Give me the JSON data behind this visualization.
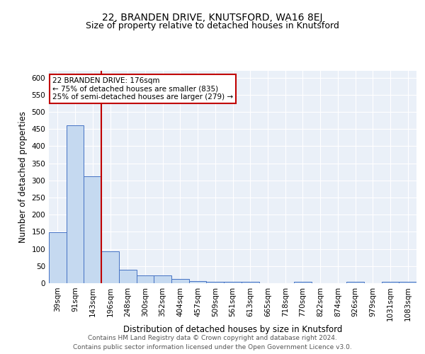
{
  "title": "22, BRANDEN DRIVE, KNUTSFORD, WA16 8EJ",
  "subtitle": "Size of property relative to detached houses in Knutsford",
  "xlabel": "Distribution of detached houses by size in Knutsford",
  "ylabel": "Number of detached properties",
  "categories": [
    "39sqm",
    "91sqm",
    "143sqm",
    "196sqm",
    "248sqm",
    "300sqm",
    "352sqm",
    "404sqm",
    "457sqm",
    "509sqm",
    "561sqm",
    "613sqm",
    "665sqm",
    "718sqm",
    "770sqm",
    "822sqm",
    "874sqm",
    "926sqm",
    "979sqm",
    "1031sqm",
    "1083sqm"
  ],
  "values": [
    148,
    460,
    312,
    93,
    39,
    22,
    22,
    13,
    7,
    5,
    5,
    4,
    0,
    0,
    5,
    0,
    0,
    5,
    0,
    5,
    5
  ],
  "bar_color": "#c5d9f0",
  "bar_edge_color": "#4472c4",
  "vline_color": "#c00000",
  "vline_x": 2.5,
  "annotation_text": "22 BRANDEN DRIVE: 176sqm\n← 75% of detached houses are smaller (835)\n25% of semi-detached houses are larger (279) →",
  "annotation_box_color": "white",
  "annotation_box_edge_color": "#c00000",
  "ylim": [
    0,
    620
  ],
  "yticks": [
    0,
    50,
    100,
    150,
    200,
    250,
    300,
    350,
    400,
    450,
    500,
    550,
    600
  ],
  "footer_line1": "Contains HM Land Registry data © Crown copyright and database right 2024.",
  "footer_line2": "Contains public sector information licensed under the Open Government Licence v3.0.",
  "background_color": "#eaf0f8",
  "title_fontsize": 10,
  "subtitle_fontsize": 9,
  "axis_label_fontsize": 8.5,
  "tick_fontsize": 7.5,
  "annotation_fontsize": 7.5,
  "footer_fontsize": 6.5
}
